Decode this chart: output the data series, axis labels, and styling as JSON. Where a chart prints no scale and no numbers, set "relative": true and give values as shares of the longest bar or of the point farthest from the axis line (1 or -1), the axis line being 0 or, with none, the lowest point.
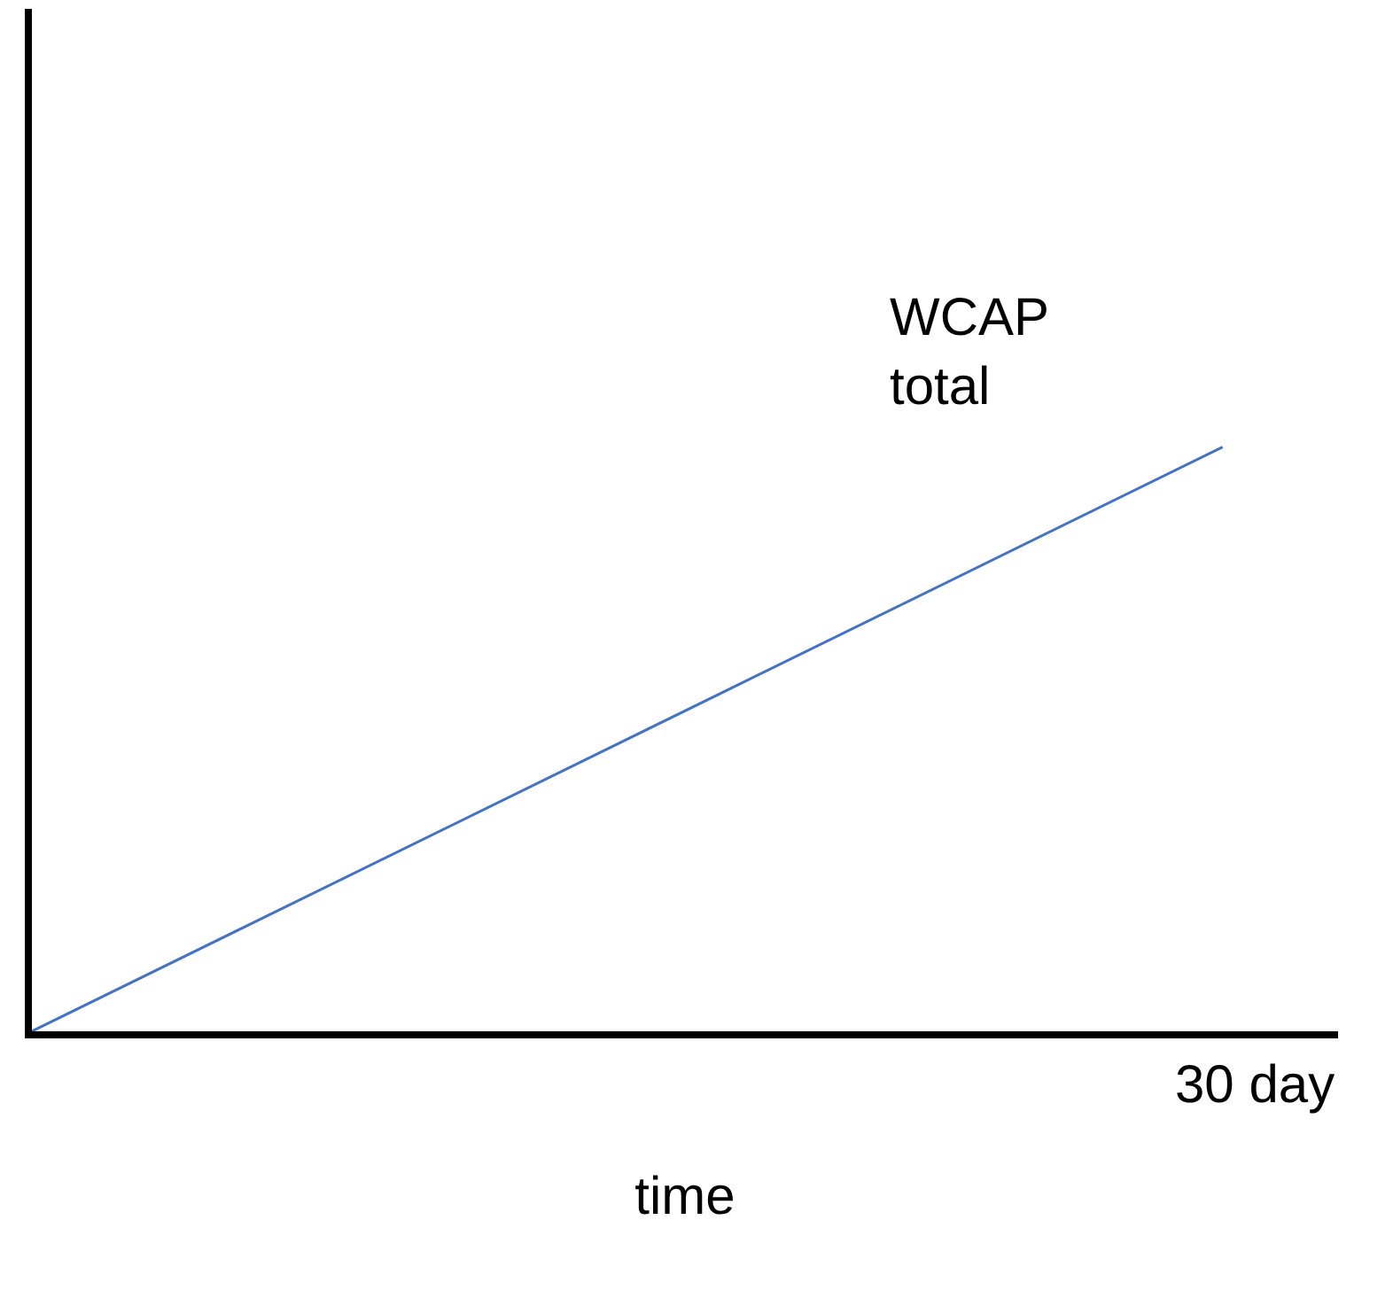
{
  "chart_data": {
    "type": "line",
    "relative": true,
    "xlabel": "time",
    "categories": [
      null,
      null
    ],
    "series": [
      {
        "color": "#4472c4",
        "values": [
          0,
          1
        ]
      }
    ],
    "tick_labels": false,
    "annotations": [
      "WCAP total",
      "30 day"
    ]
  }
}
